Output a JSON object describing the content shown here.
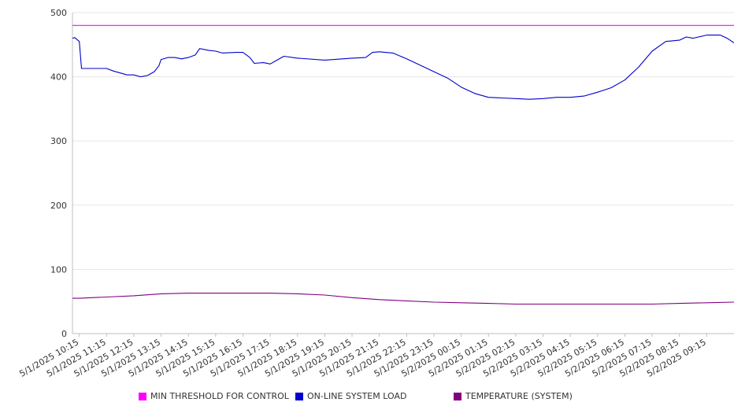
{
  "chart_data": {
    "type": "line",
    "ylim": [
      0,
      500
    ],
    "yticks": [
      0,
      100,
      200,
      300,
      400,
      500
    ],
    "grid": true,
    "legend_position": "bottom",
    "x_tick_labels": [
      "5/1/2025 10:15",
      "5/1/2025 11:15",
      "5/1/2025 12:15",
      "5/1/2025 13:15",
      "5/1/2025 14:15",
      "5/1/2025 15:15",
      "5/1/2025 16:15",
      "5/1/2025 17:15",
      "5/1/2025 18:15",
      "5/1/2025 19:15",
      "5/1/2025 20:15",
      "5/1/2025 21:15",
      "5/1/2025 22:15",
      "5/1/2025 23:15",
      "5/2/2025 00:15",
      "5/2/2025 01:15",
      "5/2/2025 02:15",
      "5/2/2025 03:15",
      "5/2/2025 04:15",
      "5/2/2025 05:15",
      "5/2/2025 06:15",
      "5/2/2025 07:15",
      "5/2/2025 08:15",
      "5/2/2025 09:15"
    ],
    "series": [
      {
        "name": "MIN THRESHOLD FOR CONTROL",
        "color": "#ff00ff",
        "points": [
          [
            "5/1/2025 10:00",
            480
          ],
          [
            "5/2/2025 10:15",
            480
          ]
        ]
      },
      {
        "name": "ON-LINE SYSTEM LOAD",
        "color": "#0000cc",
        "points": [
          [
            "5/1/2025 10:00",
            460
          ],
          [
            "5/1/2025 10:05",
            461
          ],
          [
            "5/1/2025 10:15",
            455
          ],
          [
            "5/1/2025 10:20",
            413
          ],
          [
            "5/1/2025 10:45",
            413
          ],
          [
            "5/1/2025 11:15",
            413
          ],
          [
            "5/1/2025 11:30",
            409
          ],
          [
            "5/1/2025 11:45",
            406
          ],
          [
            "5/1/2025 12:00",
            403
          ],
          [
            "5/1/2025 12:15",
            403
          ],
          [
            "5/1/2025 12:30",
            400
          ],
          [
            "5/1/2025 12:45",
            402
          ],
          [
            "5/1/2025 13:00",
            408
          ],
          [
            "5/1/2025 13:10",
            417
          ],
          [
            "5/1/2025 13:15",
            427
          ],
          [
            "5/1/2025 13:30",
            430
          ],
          [
            "5/1/2025 13:45",
            430
          ],
          [
            "5/1/2025 14:00",
            428
          ],
          [
            "5/1/2025 14:15",
            430
          ],
          [
            "5/1/2025 14:30",
            434
          ],
          [
            "5/1/2025 14:40",
            444
          ],
          [
            "5/1/2025 15:00",
            441
          ],
          [
            "5/1/2025 15:15",
            440
          ],
          [
            "5/1/2025 15:30",
            437
          ],
          [
            "5/1/2025 16:00",
            438
          ],
          [
            "5/1/2025 16:15",
            438
          ],
          [
            "5/1/2025 16:30",
            430
          ],
          [
            "5/1/2025 16:40",
            421
          ],
          [
            "5/1/2025 17:00",
            422
          ],
          [
            "5/1/2025 17:15",
            420
          ],
          [
            "5/1/2025 17:30",
            426
          ],
          [
            "5/1/2025 17:45",
            432
          ],
          [
            "5/1/2025 18:15",
            429
          ],
          [
            "5/1/2025 19:15",
            426
          ],
          [
            "5/1/2025 20:15",
            429
          ],
          [
            "5/1/2025 20:45",
            430
          ],
          [
            "5/1/2025 21:00",
            438
          ],
          [
            "5/1/2025 21:15",
            439
          ],
          [
            "5/1/2025 21:45",
            437
          ],
          [
            "5/1/2025 22:15",
            428
          ],
          [
            "5/1/2025 22:45",
            418
          ],
          [
            "5/1/2025 23:15",
            408
          ],
          [
            "5/1/2025 23:45",
            398
          ],
          [
            "5/2/2025 00:15",
            384
          ],
          [
            "5/2/2025 00:45",
            374
          ],
          [
            "5/2/2025 01:15",
            368
          ],
          [
            "5/2/2025 01:45",
            367
          ],
          [
            "5/2/2025 02:15",
            366
          ],
          [
            "5/2/2025 02:45",
            365
          ],
          [
            "5/2/2025 03:15",
            366
          ],
          [
            "5/2/2025 03:45",
            368
          ],
          [
            "5/2/2025 04:15",
            368
          ],
          [
            "5/2/2025 04:45",
            370
          ],
          [
            "5/2/2025 05:15",
            376
          ],
          [
            "5/2/2025 05:45",
            383
          ],
          [
            "5/2/2025 06:15",
            395
          ],
          [
            "5/2/2025 06:45",
            415
          ],
          [
            "5/2/2025 07:15",
            440
          ],
          [
            "5/2/2025 07:45",
            455
          ],
          [
            "5/2/2025 08:15",
            457
          ],
          [
            "5/2/2025 08:30",
            462
          ],
          [
            "5/2/2025 08:45",
            460
          ],
          [
            "5/2/2025 09:15",
            465
          ],
          [
            "5/2/2025 09:45",
            465
          ],
          [
            "5/2/2025 10:00",
            460
          ],
          [
            "5/2/2025 10:15",
            453
          ]
        ]
      },
      {
        "name": "TEMPERATURE (SYSTEM)",
        "color": "#800080",
        "points": [
          [
            "5/1/2025 10:00",
            55
          ],
          [
            "5/1/2025 10:15",
            55
          ],
          [
            "5/1/2025 11:15",
            57
          ],
          [
            "5/1/2025 12:15",
            59
          ],
          [
            "5/1/2025 13:15",
            62
          ],
          [
            "5/1/2025 14:15",
            63
          ],
          [
            "5/1/2025 15:15",
            63
          ],
          [
            "5/1/2025 16:15",
            63
          ],
          [
            "5/1/2025 17:15",
            63
          ],
          [
            "5/1/2025 18:15",
            62
          ],
          [
            "5/1/2025 19:15",
            60
          ],
          [
            "5/1/2025 20:15",
            56
          ],
          [
            "5/1/2025 21:15",
            53
          ],
          [
            "5/1/2025 22:15",
            51
          ],
          [
            "5/1/2025 23:15",
            49
          ],
          [
            "5/2/2025 00:15",
            48
          ],
          [
            "5/2/2025 01:15",
            47
          ],
          [
            "5/2/2025 02:15",
            46
          ],
          [
            "5/2/2025 03:15",
            46
          ],
          [
            "5/2/2025 04:15",
            46
          ],
          [
            "5/2/2025 05:15",
            46
          ],
          [
            "5/2/2025 06:15",
            46
          ],
          [
            "5/2/2025 07:15",
            46
          ],
          [
            "5/2/2025 08:15",
            47
          ],
          [
            "5/2/2025 09:15",
            48
          ],
          [
            "5/2/2025 10:15",
            49
          ]
        ]
      }
    ]
  }
}
